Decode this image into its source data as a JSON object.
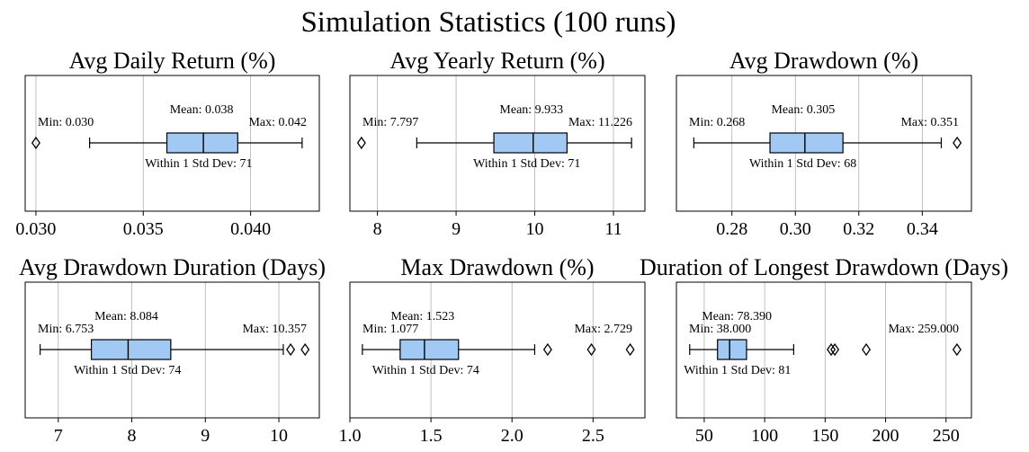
{
  "figure": {
    "title": "Simulation Statistics (100 runs)"
  },
  "colors": {
    "box_fill": "#a1c9f4",
    "stroke": "#000000",
    "grid": "#b0b0b0"
  },
  "chart_data": [
    {
      "type": "box",
      "title": "Avg Daily Return (%)",
      "xlim": [
        0.0295,
        0.0432
      ],
      "ticks": [
        0.03,
        0.035,
        0.04
      ],
      "tick_labels": [
        "0.030",
        "0.035",
        "0.040"
      ],
      "grid": true,
      "box": {
        "whisker_low": 0.0325,
        "q1": 0.0361,
        "median": 0.0378,
        "q3": 0.0394,
        "whisker_high": 0.0424
      },
      "outliers": [
        0.03
      ],
      "annotations": {
        "min": "Min: 0.030",
        "mean": "Mean: 0.038",
        "max": "Max: 0.042",
        "std": "Within 1 Std Dev: 71"
      }
    },
    {
      "type": "box",
      "title": "Avg Yearly Return (%)",
      "xlim": [
        7.65,
        11.4
      ],
      "ticks": [
        8,
        9,
        10,
        11
      ],
      "tick_labels": [
        "8",
        "9",
        "10",
        "11"
      ],
      "grid": true,
      "box": {
        "whisker_low": 8.5,
        "q1": 9.48,
        "median": 9.98,
        "q3": 10.41,
        "whisker_high": 11.23
      },
      "outliers": [
        7.797
      ],
      "annotations": {
        "min": "Min: 7.797",
        "mean": "Mean: 9.933",
        "max": "Max: 11.226",
        "std": "Within 1 Std Dev: 71"
      }
    },
    {
      "type": "box",
      "title": "Avg Drawdown (%)",
      "xlim": [
        0.2625,
        0.3555
      ],
      "ticks": [
        0.28,
        0.3,
        0.32,
        0.34
      ],
      "tick_labels": [
        "0.28",
        "0.30",
        "0.32",
        "0.34"
      ],
      "grid": true,
      "box": {
        "whisker_low": 0.268,
        "q1": 0.292,
        "median": 0.303,
        "q3": 0.315,
        "whisker_high": 0.346
      },
      "outliers": [
        0.351
      ],
      "annotations": {
        "min": "Min: 0.268",
        "mean": "Mean: 0.305",
        "max": "Max: 0.351",
        "std": "Within 1 Std Dev: 68"
      }
    },
    {
      "type": "box",
      "title": "Avg Drawdown Duration (Days)",
      "xlim": [
        6.55,
        10.55
      ],
      "ticks": [
        7,
        8,
        9,
        10
      ],
      "tick_labels": [
        "7",
        "8",
        "9",
        "10"
      ],
      "grid": true,
      "box": {
        "whisker_low": 6.753,
        "q1": 7.45,
        "median": 7.95,
        "q3": 8.53,
        "whisker_high": 10.06
      },
      "outliers": [
        10.16,
        10.357
      ],
      "annotations": {
        "min": "Min: 6.753",
        "mean": "Mean: 8.084",
        "max": "Max: 10.357",
        "std": "Within 1 Std Dev: 74"
      }
    },
    {
      "type": "box",
      "title": "Max Drawdown (%)",
      "xlim": [
        1.0,
        2.82
      ],
      "ticks": [
        1.0,
        1.5,
        2.0,
        2.5
      ],
      "tick_labels": [
        "1.0",
        "1.5",
        "2.0",
        "2.5"
      ],
      "grid": true,
      "box": {
        "whisker_low": 1.077,
        "q1": 1.31,
        "median": 1.46,
        "q3": 1.67,
        "whisker_high": 2.14
      },
      "outliers": [
        2.22,
        2.49,
        2.729
      ],
      "annotations": {
        "min": "Min: 1.077",
        "mean": "Mean: 1.523",
        "max": "Max: 2.729",
        "std": "Within 1 Std Dev: 74"
      }
    },
    {
      "type": "box",
      "title": "Duration of Longest Drawdown (Days)",
      "xlim": [
        27,
        271
      ],
      "ticks": [
        50,
        100,
        150,
        200,
        250
      ],
      "tick_labels": [
        "50",
        "100",
        "150",
        "200",
        "250"
      ],
      "grid": true,
      "box": {
        "whisker_low": 38.0,
        "q1": 61,
        "median": 71,
        "q3": 85,
        "whisker_high": 124
      },
      "outliers": [
        155,
        158,
        184,
        259.0
      ],
      "annotations": {
        "min": "Min: 38.000",
        "mean": "Mean: 78.390",
        "max": "Max: 259.000",
        "std": "Within 1 Std Dev: 81"
      }
    }
  ]
}
